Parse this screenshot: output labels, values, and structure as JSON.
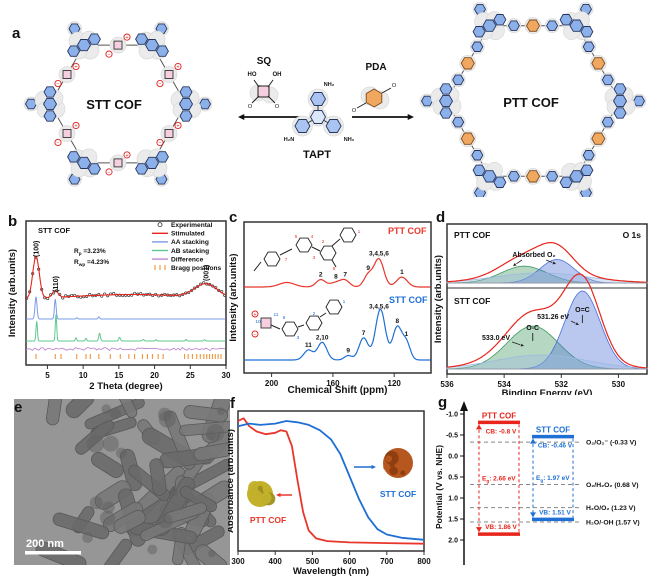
{
  "figure": {
    "panel_labels": {
      "a": "a",
      "b": "b",
      "c": "c",
      "d": "d",
      "e": "e",
      "f": "f",
      "g": "g"
    }
  },
  "panel_a": {
    "stt_name": "STT COF",
    "ptt_name": "PTT COF",
    "tapt_name": "TAPT",
    "sq_name": "SQ",
    "pda_name": "PDA",
    "ho": "HO",
    "oh": "OH",
    "nh2_top": "NH₂",
    "nh2_left": "H₂N",
    "nh2_right": "NH₂"
  },
  "panel_e": {
    "scale_bar": "200 nm"
  },
  "chart_data": [
    {
      "id": "xrd",
      "type": "line",
      "title": "STT COF",
      "xlabel": "2 Theta (degree)",
      "ylabel": "Intensity (arb.units)",
      "xlim": [
        2,
        30
      ],
      "xticks": [
        5,
        10,
        15,
        20,
        25,
        30
      ],
      "r_factors": [
        {
          "base": "R",
          "sub": "p",
          "rest": " =3.23%"
        },
        {
          "base": "R",
          "sub": "wp",
          "rest": " =4.23%"
        }
      ],
      "peak_labels": [
        {
          "text": "(100)",
          "x": 3.4
        },
        {
          "text": "(110)",
          "x": 6.1
        },
        {
          "text": "(001)",
          "x": 27.2
        }
      ],
      "legend": [
        "Experimental",
        "Stimulated",
        "AA stacking",
        "AB stacking",
        "Difference",
        "Bragg positions"
      ],
      "colors": {
        "experimental": "#3a3a3a",
        "stimulated": "#e8251d",
        "aa": "#7b9ce8",
        "ab": "#5fc98e",
        "difference": "#bd8ad2",
        "bragg": "#f2953a"
      },
      "experimental_peaks": [
        [
          3.4,
          1.0,
          0.45
        ],
        [
          6.1,
          0.16,
          0.4
        ],
        [
          27.2,
          0.32,
          1.6
        ],
        [
          17.0,
          0.13,
          9.0
        ]
      ],
      "aa_peaks": [
        [
          3.4,
          1.0,
          0.14
        ],
        [
          6.1,
          0.9,
          0.12
        ],
        [
          9.1,
          0.06,
          0.1
        ],
        [
          12.2,
          0.1,
          0.1
        ]
      ],
      "ab_peaks": [
        [
          3.5,
          0.75,
          0.1
        ],
        [
          6.2,
          1.0,
          0.1
        ],
        [
          9.0,
          0.12,
          0.1
        ],
        [
          10.4,
          0.1,
          0.1
        ],
        [
          12.3,
          0.3,
          0.12
        ],
        [
          15.1,
          0.14,
          0.12
        ],
        [
          18.4,
          0.06,
          0.12
        ],
        [
          20.2,
          0.05,
          0.1
        ],
        [
          24.4,
          0.06,
          0.1
        ],
        [
          27.0,
          0.05,
          0.1
        ]
      ],
      "bragg_positions": [
        3.4,
        6.1,
        6.9,
        9.1,
        10.4,
        11.0,
        12.2,
        13.8,
        15.2,
        16.4,
        17.2,
        18.3,
        19.0,
        19.7,
        20.5,
        21.2,
        24.2,
        24.7,
        25.3,
        25.9,
        26.4,
        26.9,
        27.3,
        27.7,
        28.1,
        28.5,
        28.9,
        29.3
      ]
    },
    {
      "id": "nmr",
      "type": "line",
      "xlabel": "Chemical Shift (ppm)",
      "ylabel": "Intensity (arb.units)",
      "xlim": [
        218,
        96
      ],
      "xticks": [
        200,
        160,
        120
      ],
      "series": [
        {
          "name": "PTT COF",
          "color": "#e8362b",
          "peaks": [
            [
              190,
              0.1,
              5
            ],
            [
              168,
              0.16,
              3
            ],
            [
              158,
              0.1,
              4
            ],
            [
              152,
              0.13,
              3
            ],
            [
              137,
              0.26,
              2.8
            ],
            [
              130,
              0.62,
              3.2
            ],
            [
              115,
              0.22,
              3.5
            ]
          ],
          "peak_labels": [
            {
              "text": "2",
              "x": 168
            },
            {
              "text": "8",
              "x": 158
            },
            {
              "text": "7",
              "x": 152
            },
            {
              "text": "9",
              "x": 137
            },
            {
              "text": "3,4,5,6",
              "x": 130
            },
            {
              "text": "1",
              "x": 115
            }
          ]
        },
        {
          "name": "STT COF",
          "color": "#1f6fd4",
          "peaks": [
            [
              176,
              0.18,
              3
            ],
            [
              167,
              0.32,
              3
            ],
            [
              150,
              0.08,
              2.5
            ],
            [
              140,
              0.4,
              3
            ],
            [
              129,
              0.92,
              3.2
            ],
            [
              118,
              0.6,
              3
            ],
            [
              112,
              0.3,
              2.5
            ]
          ],
          "peak_labels": [
            {
              "text": "11",
              "x": 176
            },
            {
              "text": "2,10",
              "x": 167
            },
            {
              "text": "9",
              "x": 150
            },
            {
              "text": "7",
              "x": 140
            },
            {
              "text": "3,4,5,6",
              "x": 130
            },
            {
              "text": "8",
              "x": 118
            },
            {
              "text": "1",
              "x": 112
            }
          ]
        }
      ]
    },
    {
      "id": "xps",
      "type": "area",
      "xlabel": "Binding Energy (eV)",
      "ylabel": "Intensity (arb.units)",
      "xlim": [
        536,
        529
      ],
      "xticks": [
        536,
        534,
        532,
        530
      ],
      "corner_label": "O 1s",
      "envelope_color": "#e8251d",
      "subpanels": [
        {
          "name": "PTT COF",
          "annotation": "Absorbed O₂",
          "peaks": [
            {
              "center": 533.3,
              "height": 0.3,
              "width": 0.8,
              "color": "#3f9960"
            },
            {
              "center": 532.15,
              "height": 0.42,
              "width": 0.6,
              "color": "#4a6fd8"
            }
          ]
        },
        {
          "name": "STT COF",
          "peaks": [
            {
              "center": 533.0,
              "height": 0.55,
              "width": 0.9,
              "color": "#3f9960",
              "label": "O-C",
              "ev_label": "533.0 eV"
            },
            {
              "center": 531.26,
              "height": 1.0,
              "width": 0.62,
              "color": "#4a6fd8",
              "label": "O=C",
              "ev_label": "531.26 eV"
            }
          ]
        }
      ]
    },
    {
      "id": "uvvis",
      "type": "line",
      "xlabel": "Wavelength (nm)",
      "ylabel": "Absorbance (arb.units)",
      "xlim": [
        300,
        800
      ],
      "xticks": [
        300,
        400,
        500,
        600,
        700,
        800
      ],
      "series": [
        {
          "name": "PTT COF",
          "color": "#e8362b",
          "powder_color": "#c3b12c",
          "powder_dark": "#9d8f1d",
          "x": [
            300,
            315,
            330,
            350,
            375,
            400,
            415,
            430,
            445,
            460,
            475,
            490,
            510,
            540,
            600,
            700,
            800
          ],
          "y": [
            0.97,
            0.99,
            0.93,
            0.89,
            0.87,
            0.88,
            0.9,
            0.89,
            0.78,
            0.52,
            0.28,
            0.14,
            0.08,
            0.06,
            0.05,
            0.045,
            0.04
          ]
        },
        {
          "name": "STT COF",
          "color": "#1f6fd4",
          "powder_color": "#b5571f",
          "powder_dark": "#8e3d10",
          "x": [
            300,
            330,
            360,
            400,
            430,
            460,
            490,
            520,
            550,
            575,
            600,
            625,
            650,
            675,
            700,
            740,
            800
          ],
          "y": [
            0.93,
            0.95,
            0.94,
            0.95,
            0.97,
            0.96,
            0.94,
            0.9,
            0.83,
            0.72,
            0.55,
            0.38,
            0.24,
            0.15,
            0.11,
            0.085,
            0.07
          ]
        }
      ]
    },
    {
      "id": "energy",
      "type": "energy-levels",
      "ylabel": "Potential (V vs. NHE)",
      "yticks": [
        -1.0,
        -0.5,
        0.0,
        0.5,
        1.0,
        1.5,
        2.0
      ],
      "materials": [
        {
          "name": "PTT COF",
          "color": "#e8251d",
          "cb": -0.8,
          "vb": 1.86,
          "cb_label": "CB: -0.8 V",
          "vb_label": "VB: 1.86 V",
          "eg_label": {
            "base": "E",
            "sub": "g",
            "rest": ": 2.66 eV"
          }
        },
        {
          "name": "STT COF",
          "color": "#1f6fd4",
          "cb": -0.46,
          "vb": 1.51,
          "cb_label": "CB: -0.46 V",
          "vb_label": "VB: 1.51 V",
          "eg_label": {
            "base": "E",
            "sub": "g",
            "rest": ": 1.97 eV"
          }
        }
      ],
      "references": [
        {
          "label": "O₂/O₂⁻ (-0.33 V)",
          "v": -0.33
        },
        {
          "label": "O₂/H₂O₂ (0.68 V)",
          "v": 0.68
        },
        {
          "label": "H₂O/O₂ (1.23 V)",
          "v": 1.23
        },
        {
          "label": "H₂O/·OH (1.57 V)",
          "v": 1.57
        }
      ]
    }
  ]
}
